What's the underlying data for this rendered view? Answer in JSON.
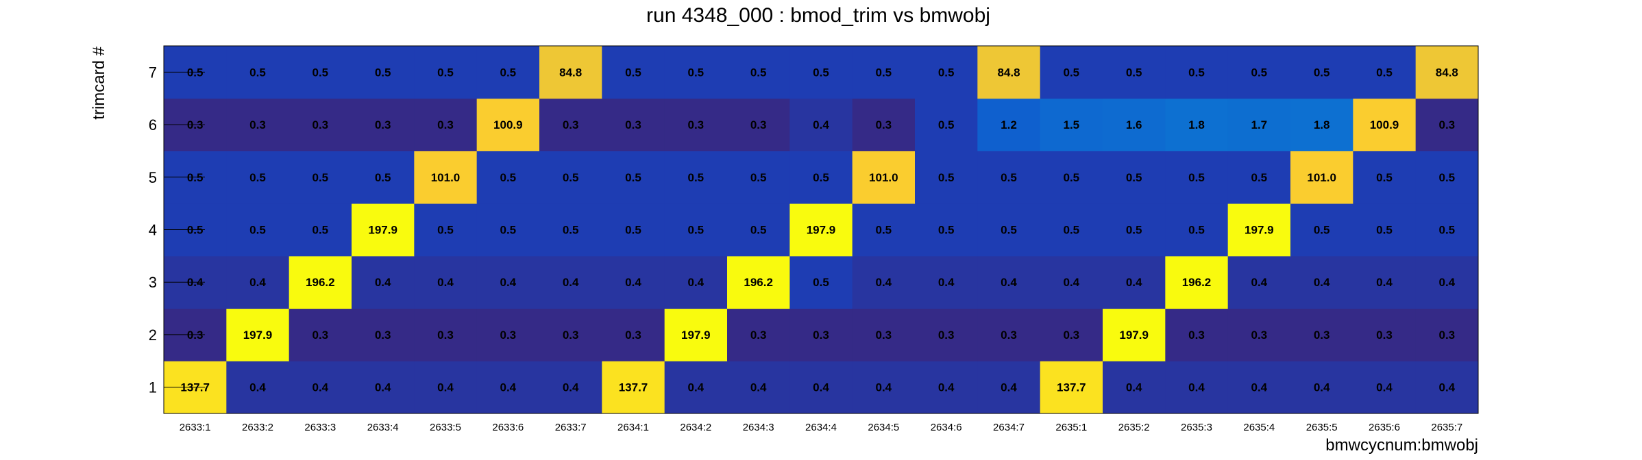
{
  "chart_data": {
    "type": "heatmap",
    "title": "run 4348_000 : bmod_trim vs bmwobj",
    "xlabel": "bmwcycnum:bmwobj",
    "ylabel": "trimcard #",
    "x_categories": [
      "2633:1",
      "2633:2",
      "2633:3",
      "2633:4",
      "2633:5",
      "2633:6",
      "2633:7",
      "2634:1",
      "2634:2",
      "2634:3",
      "2634:4",
      "2634:5",
      "2634:6",
      "2634:7",
      "2635:1",
      "2635:2",
      "2635:3",
      "2635:4",
      "2635:5",
      "2635:6",
      "2635:7"
    ],
    "y_categories": [
      "1",
      "2",
      "3",
      "4",
      "5",
      "6",
      "7"
    ],
    "values": [
      [
        137.7,
        0.4,
        0.4,
        0.4,
        0.4,
        0.4,
        0.4,
        137.7,
        0.4,
        0.4,
        0.4,
        0.4,
        0.4,
        0.4,
        137.7,
        0.4,
        0.4,
        0.4,
        0.4,
        0.4,
        0.4
      ],
      [
        0.3,
        197.9,
        0.3,
        0.3,
        0.3,
        0.3,
        0.3,
        0.3,
        197.9,
        0.3,
        0.3,
        0.3,
        0.3,
        0.3,
        0.3,
        197.9,
        0.3,
        0.3,
        0.3,
        0.3,
        0.3
      ],
      [
        0.4,
        0.4,
        196.2,
        0.4,
        0.4,
        0.4,
        0.4,
        0.4,
        0.4,
        196.2,
        0.5,
        0.4,
        0.4,
        0.4,
        0.4,
        0.4,
        196.2,
        0.4,
        0.4,
        0.4,
        0.4
      ],
      [
        0.5,
        0.5,
        0.5,
        197.9,
        0.5,
        0.5,
        0.5,
        0.5,
        0.5,
        0.5,
        197.9,
        0.5,
        0.5,
        0.5,
        0.5,
        0.5,
        0.5,
        197.9,
        0.5,
        0.5,
        0.5
      ],
      [
        0.5,
        0.5,
        0.5,
        0.5,
        101.0,
        0.5,
        0.5,
        0.5,
        0.5,
        0.5,
        0.5,
        101.0,
        0.5,
        0.5,
        0.5,
        0.5,
        0.5,
        0.5,
        101.0,
        0.5,
        0.5
      ],
      [
        0.3,
        0.3,
        0.3,
        0.3,
        0.3,
        100.9,
        0.3,
        0.3,
        0.3,
        0.3,
        0.4,
        0.3,
        0.5,
        1.2,
        1.5,
        1.6,
        1.8,
        1.7,
        1.8,
        100.9,
        0.3
      ],
      [
        0.5,
        0.5,
        0.5,
        0.5,
        0.5,
        0.5,
        84.8,
        0.5,
        0.5,
        0.5,
        0.5,
        0.5,
        0.5,
        84.8,
        0.5,
        0.5,
        0.5,
        0.5,
        0.5,
        0.5,
        84.8
      ]
    ],
    "grid": false,
    "legend": "none"
  }
}
